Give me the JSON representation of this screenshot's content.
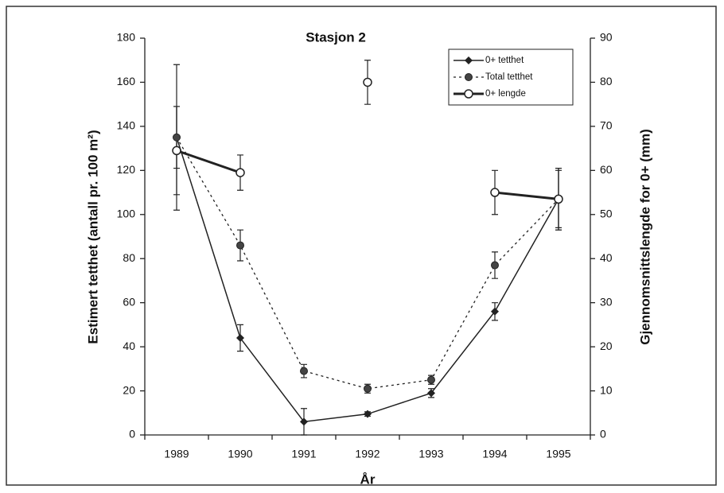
{
  "chart_data": {
    "type": "line",
    "title": "Stasjon 2",
    "xlabel": "År",
    "ylabel": "Estimert tetthet (antall pr. 100 m²)",
    "y2label": "Gjennomsnittslengde for 0+ (mm)",
    "categories": [
      "1989",
      "1990",
      "1991",
      "1992",
      "1993",
      "1994",
      "1995"
    ],
    "ylim": [
      0,
      180
    ],
    "yticks": [
      0,
      20,
      40,
      60,
      80,
      100,
      120,
      140,
      160,
      180
    ],
    "y2lim": [
      0,
      90
    ],
    "y2ticks": [
      0,
      10,
      20,
      30,
      40,
      50,
      60,
      70,
      80,
      90
    ],
    "legend": "upper right",
    "series": [
      {
        "name": "0+ tetthet",
        "color": "#222",
        "marker": "diamond",
        "dash": "solid",
        "width": 1.5,
        "values": [
          135,
          44,
          6,
          9.5,
          19,
          56,
          107
        ],
        "errors": [
          14,
          6,
          6,
          1,
          2,
          4,
          13
        ]
      },
      {
        "name": "Total tetthet",
        "color": "#222",
        "marker": "circle",
        "dash": "dotted",
        "width": 1.3,
        "values": [
          135,
          86,
          29,
          21,
          25,
          77,
          107
        ],
        "errors": [
          33,
          7,
          3,
          2,
          2,
          6,
          14
        ]
      },
      {
        "name": "0+ lengde",
        "color": "#222",
        "marker": "open-circle",
        "dash": "solid",
        "width": 3,
        "axis": "y2",
        "values": [
          64.5,
          59.5,
          null,
          80,
          null,
          55,
          53.5
        ],
        "errors": [
          10,
          4,
          null,
          5,
          null,
          5,
          7
        ]
      }
    ]
  }
}
